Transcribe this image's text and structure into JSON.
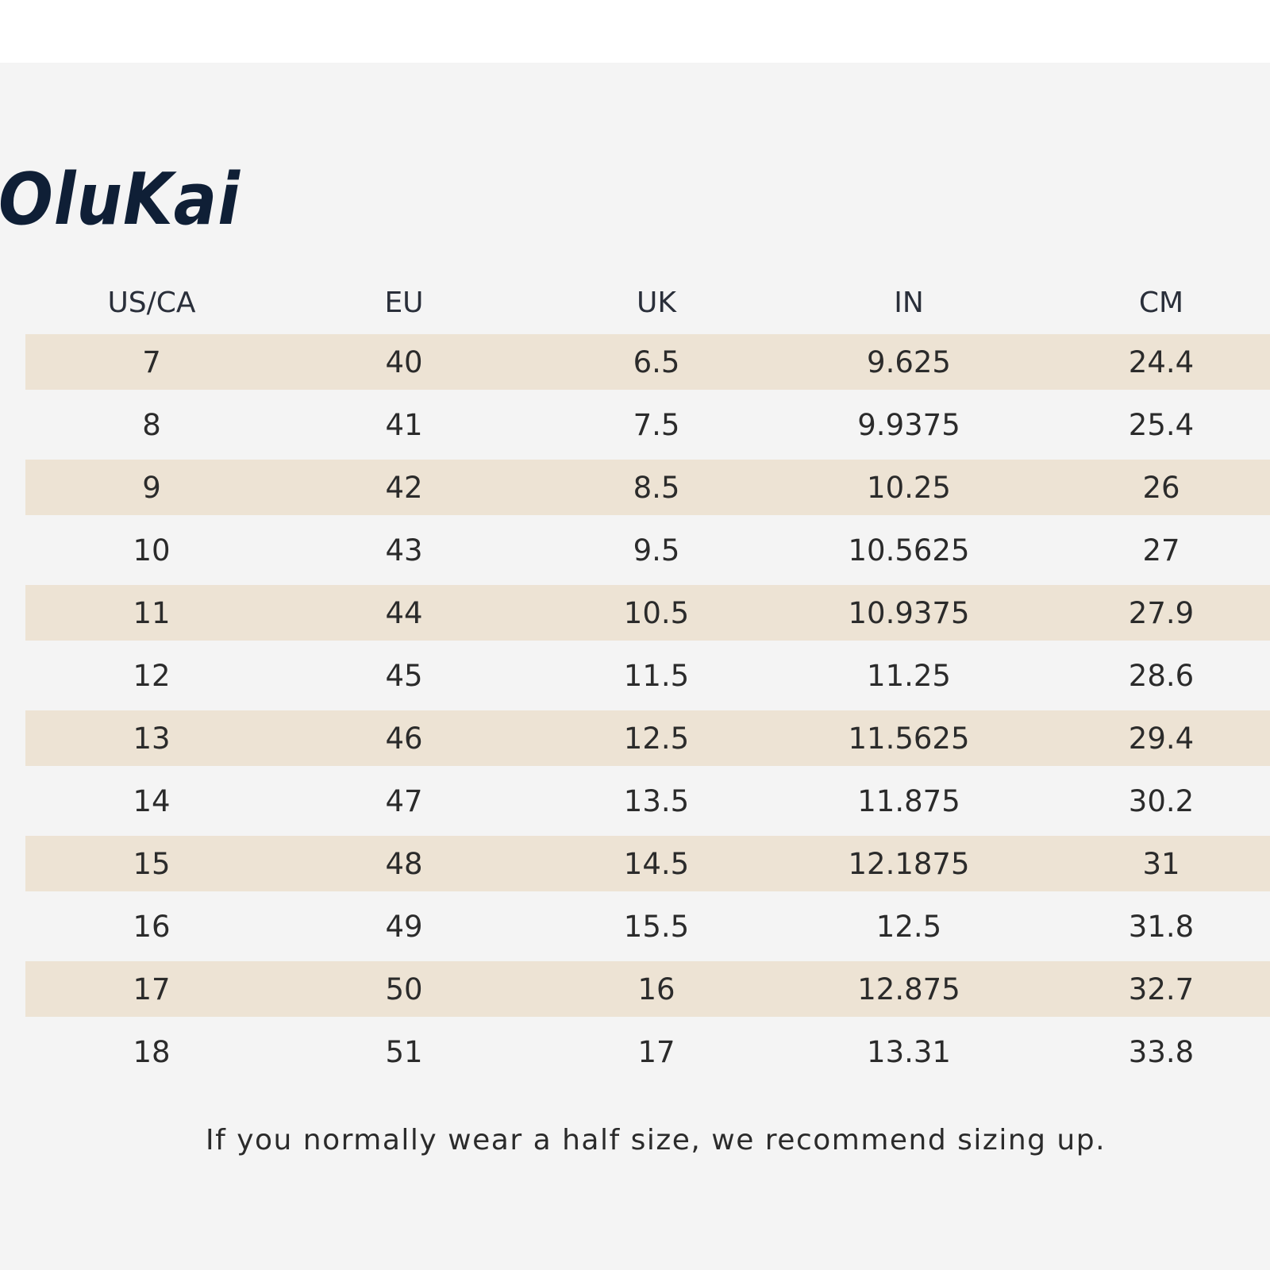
{
  "brand": {
    "logo_text": "OluKai",
    "logo_color": "#0f1f36"
  },
  "colors": {
    "row_shade": "#ede3d4",
    "panel_bg": "#f4f4f4"
  },
  "table": {
    "headers": [
      "US/CA",
      "EU",
      "UK",
      "IN",
      "CM"
    ],
    "rows": [
      [
        "7",
        "40",
        "6.5",
        "9.625",
        "24.4"
      ],
      [
        "8",
        "41",
        "7.5",
        "9.9375",
        "25.4"
      ],
      [
        "9",
        "42",
        "8.5",
        "10.25",
        "26"
      ],
      [
        "10",
        "43",
        "9.5",
        "10.5625",
        "27"
      ],
      [
        "11",
        "44",
        "10.5",
        "10.9375",
        "27.9"
      ],
      [
        "12",
        "45",
        "11.5",
        "11.25",
        "28.6"
      ],
      [
        "13",
        "46",
        "12.5",
        "11.5625",
        "29.4"
      ],
      [
        "14",
        "47",
        "13.5",
        "11.875",
        "30.2"
      ],
      [
        "15",
        "48",
        "14.5",
        "12.1875",
        "31"
      ],
      [
        "16",
        "49",
        "15.5",
        "12.5",
        "31.8"
      ],
      [
        "17",
        "50",
        "16",
        "12.875",
        "32.7"
      ],
      [
        "18",
        "51",
        "17",
        "13.31",
        "33.8"
      ]
    ]
  },
  "footnote": "If you normally wear a half size, we recommend sizing up."
}
